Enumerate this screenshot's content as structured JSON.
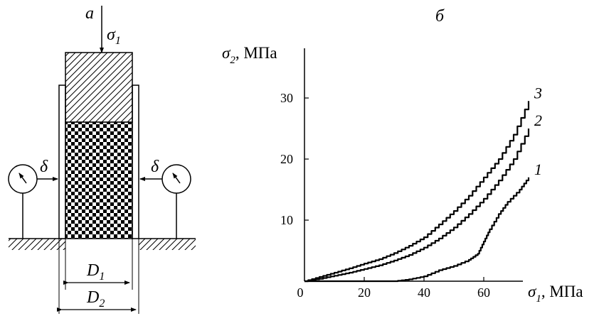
{
  "panel_a": {
    "label": "а",
    "load_symbol": "σ",
    "load_subscript": "1",
    "gauge_symbol": "δ",
    "inner_diameter_symbol": "D",
    "inner_diameter_subscript": "1",
    "outer_diameter_symbol": "D",
    "outer_diameter_subscript": "2"
  },
  "chart_data": {
    "type": "line",
    "panel_label": "б",
    "ylabel_symbol": "σ",
    "ylabel_subscript": "2",
    "ylabel_unit": ", МПа",
    "xlabel_symbol": "σ",
    "xlabel_subscript": "1",
    "xlabel_unit": ", МПа",
    "xlim": [
      0,
      80
    ],
    "ylim": [
      0,
      35
    ],
    "xticks": [
      "0",
      "20",
      "40",
      "60"
    ],
    "yticks": [
      "10",
      "20",
      "30"
    ],
    "grid": false,
    "series": [
      {
        "name": "1",
        "points": [
          [
            0,
            0
          ],
          [
            10,
            0
          ],
          [
            20,
            0
          ],
          [
            30,
            0
          ],
          [
            35,
            0.3
          ],
          [
            40,
            0.8
          ],
          [
            45,
            1.8
          ],
          [
            50,
            2.5
          ],
          [
            55,
            3.5
          ],
          [
            58,
            4.5
          ],
          [
            60,
            6.5
          ],
          [
            62,
            8.5
          ],
          [
            65,
            11
          ],
          [
            68,
            13
          ],
          [
            72,
            15
          ],
          [
            75,
            17
          ]
        ]
      },
      {
        "name": "2",
        "points": [
          [
            0,
            0
          ],
          [
            5,
            0.4
          ],
          [
            10,
            0.9
          ],
          [
            15,
            1.4
          ],
          [
            20,
            2.0
          ],
          [
            25,
            2.6
          ],
          [
            30,
            3.4
          ],
          [
            35,
            4.3
          ],
          [
            40,
            5.5
          ],
          [
            45,
            7.0
          ],
          [
            50,
            8.8
          ],
          [
            55,
            11
          ],
          [
            60,
            13.5
          ],
          [
            65,
            16.5
          ],
          [
            70,
            20
          ],
          [
            75,
            25
          ]
        ]
      },
      {
        "name": "3",
        "points": [
          [
            0,
            0
          ],
          [
            5,
            0.7
          ],
          [
            10,
            1.4
          ],
          [
            15,
            2.1
          ],
          [
            20,
            2.9
          ],
          [
            25,
            3.6
          ],
          [
            30,
            4.6
          ],
          [
            35,
            5.8
          ],
          [
            40,
            7.2
          ],
          [
            45,
            9.3
          ],
          [
            50,
            11.5
          ],
          [
            55,
            14
          ],
          [
            60,
            17
          ],
          [
            65,
            20
          ],
          [
            70,
            24
          ],
          [
            75,
            29.5
          ]
        ]
      }
    ]
  }
}
